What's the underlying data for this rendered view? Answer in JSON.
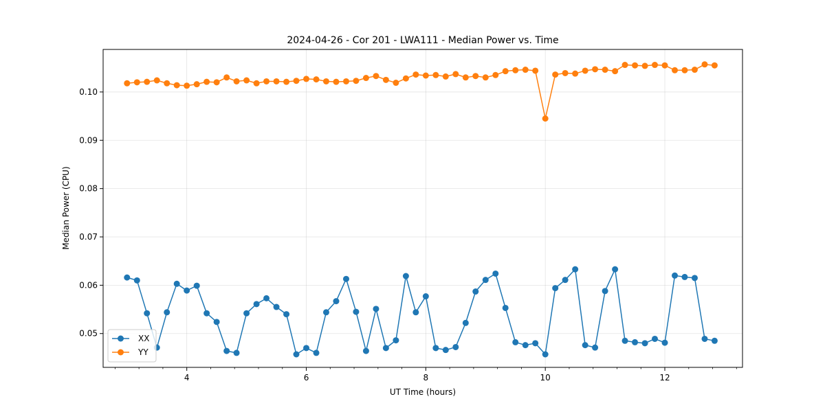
{
  "chart_data": {
    "type": "line",
    "title": "2024-04-26 - Cor 201 - LWA111 - Median Power vs. Time",
    "xlabel": "UT Time (hours)",
    "ylabel": "Median Power (CPU)",
    "xlim": [
      2.6,
      13.3
    ],
    "ylim": [
      0.043,
      0.1088
    ],
    "xticks": [
      4,
      6,
      8,
      10,
      12
    ],
    "xtick_labels": [
      "4",
      "6",
      "8",
      "10",
      "12"
    ],
    "xminor_step": 0.4,
    "yticks": [
      0.05,
      0.06,
      0.07,
      0.08,
      0.09,
      0.1
    ],
    "ytick_labels": [
      "0.05",
      "0.06",
      "0.07",
      "0.08",
      "0.09",
      "0.10"
    ],
    "grid": true,
    "legend_position": "lower-left",
    "x": [
      3.0,
      3.167,
      3.333,
      3.5,
      3.667,
      3.833,
      4.0,
      4.167,
      4.333,
      4.5,
      4.667,
      4.833,
      5.0,
      5.167,
      5.333,
      5.5,
      5.667,
      5.833,
      6.0,
      6.167,
      6.333,
      6.5,
      6.667,
      6.833,
      7.0,
      7.167,
      7.333,
      7.5,
      7.667,
      7.833,
      8.0,
      8.167,
      8.333,
      8.5,
      8.667,
      8.833,
      9.0,
      9.167,
      9.333,
      9.5,
      9.667,
      9.833,
      10.0,
      10.167,
      10.333,
      10.5,
      10.667,
      10.833,
      11.0,
      11.167,
      11.333,
      11.5,
      11.667,
      11.833,
      12.0,
      12.167,
      12.333,
      12.5,
      12.667,
      12.833
    ],
    "series": [
      {
        "name": "XX",
        "color": "#1f77b4",
        "values": [
          0.0616,
          0.061,
          0.0542,
          0.0471,
          0.0544,
          0.0603,
          0.0589,
          0.0599,
          0.0542,
          0.0524,
          0.0464,
          0.046,
          0.0542,
          0.0561,
          0.0573,
          0.0555,
          0.054,
          0.0457,
          0.047,
          0.046,
          0.0544,
          0.0567,
          0.0613,
          0.0545,
          0.0464,
          0.0551,
          0.047,
          0.0486,
          0.0619,
          0.0544,
          0.0577,
          0.047,
          0.0466,
          0.0472,
          0.0522,
          0.0587,
          0.0611,
          0.0624,
          0.0553,
          0.0482,
          0.0476,
          0.048,
          0.0457,
          0.0594,
          0.0611,
          0.0633,
          0.0476,
          0.0471,
          0.0588,
          0.0633,
          0.0485,
          0.0482,
          0.048,
          0.0489,
          0.0481,
          0.062,
          0.0617,
          0.0615,
          0.0489,
          0.0485
        ]
      },
      {
        "name": "YY",
        "color": "#ff7f0e",
        "values": [
          0.1018,
          0.102,
          0.1021,
          0.1024,
          0.1018,
          0.1014,
          0.1013,
          0.1016,
          0.1021,
          0.102,
          0.103,
          0.1022,
          0.1024,
          0.1018,
          0.1022,
          0.1022,
          0.1021,
          0.1023,
          0.1027,
          0.1026,
          0.1022,
          0.1021,
          0.1022,
          0.1023,
          0.1029,
          0.1033,
          0.1025,
          0.1019,
          0.1028,
          0.1036,
          0.1034,
          0.1035,
          0.1032,
          0.1037,
          0.103,
          0.1033,
          0.103,
          0.1035,
          0.1043,
          0.1045,
          0.1046,
          0.1044,
          0.0945,
          0.1036,
          0.1039,
          0.1038,
          0.1044,
          0.1047,
          0.1046,
          0.1043,
          0.1056,
          0.1055,
          0.1054,
          0.1056,
          0.1055,
          0.1045,
          0.1045,
          0.1046,
          0.1057,
          0.1055
        ]
      }
    ]
  }
}
